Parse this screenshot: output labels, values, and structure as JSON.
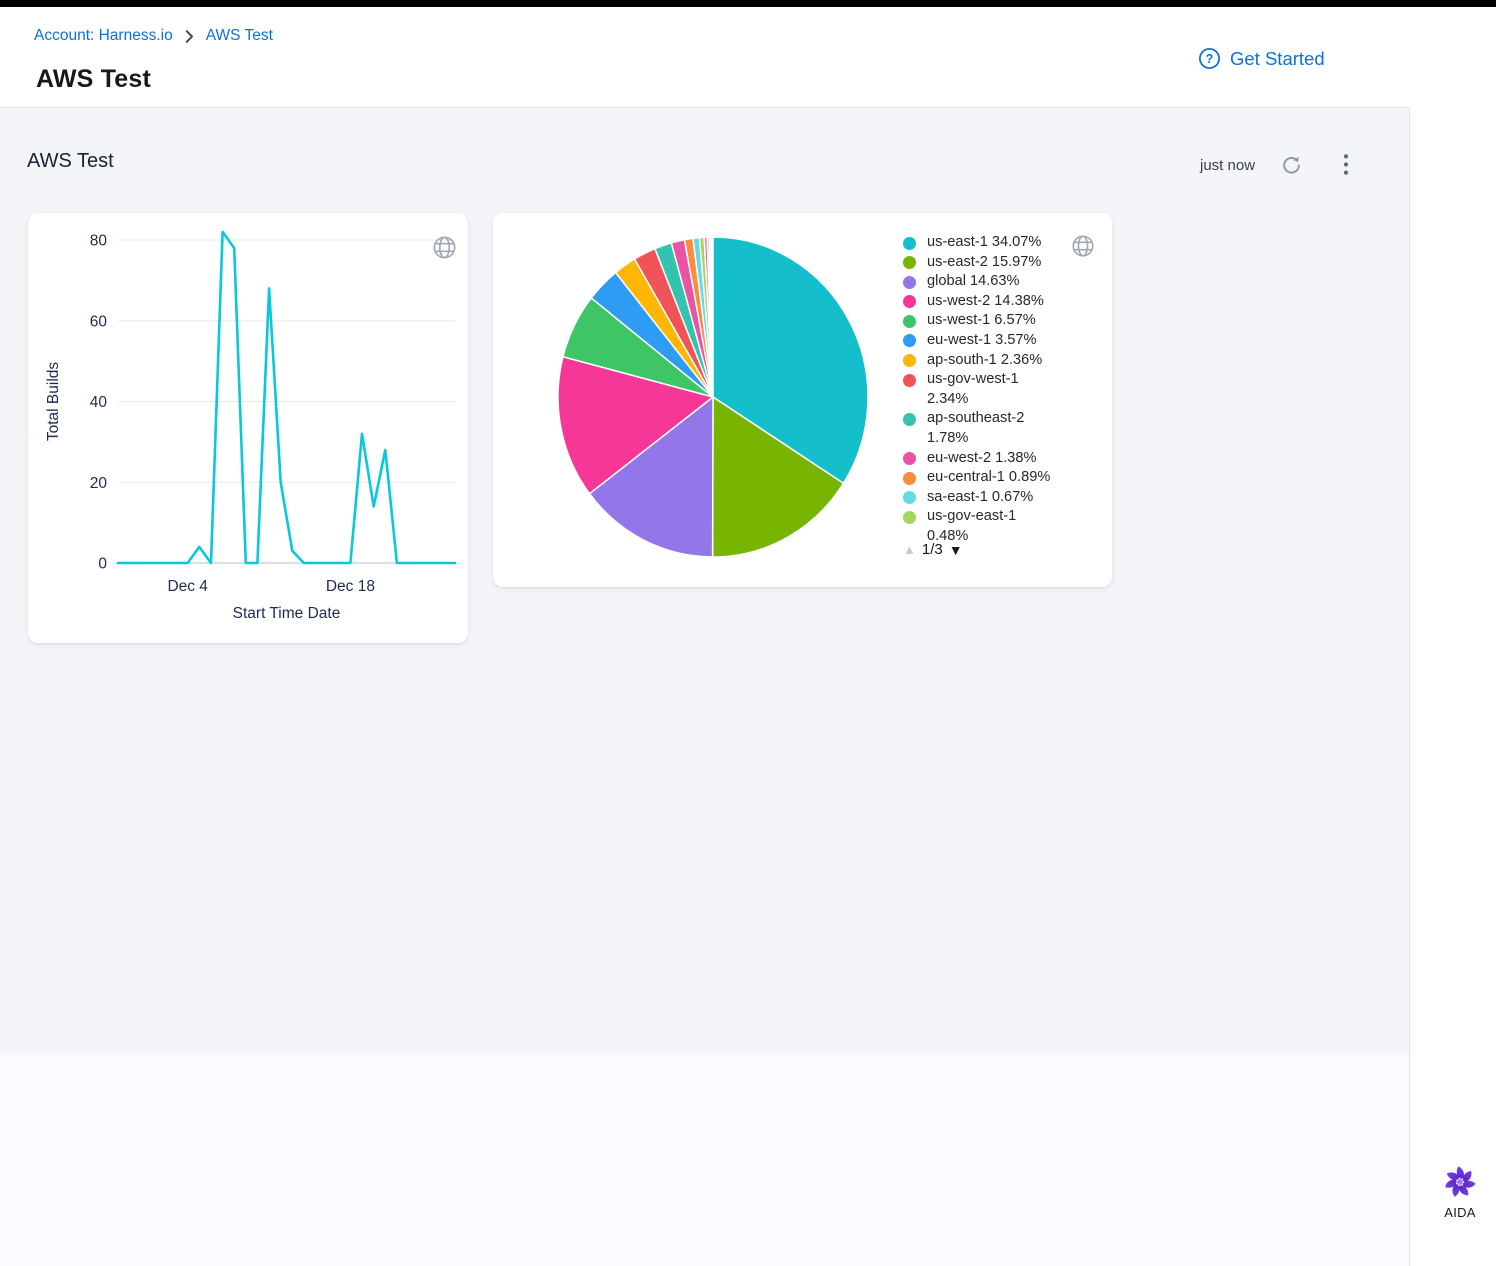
{
  "header": {
    "breadcrumb": [
      {
        "label": "Account: Harness.io"
      },
      {
        "label": "AWS Test"
      }
    ],
    "page_title": "AWS Test",
    "get_started_label": "Get Started"
  },
  "dashboard": {
    "section_title": "AWS Test",
    "last_refreshed": "just now"
  },
  "aida": {
    "label": "AIDA"
  },
  "chart_data": [
    {
      "type": "line",
      "title": "",
      "xlabel": "Start Time Date",
      "ylabel": "Total Builds",
      "values": [
        0,
        0,
        0,
        0,
        0,
        0,
        0,
        4,
        0,
        82,
        78,
        0,
        0,
        68,
        20,
        3,
        0,
        0,
        0,
        0,
        0,
        32,
        14,
        28,
        0,
        0,
        0,
        0,
        0,
        0
      ],
      "x_tick_indices": [
        6,
        20
      ],
      "x_tick_labels": [
        "Dec 4",
        "Dec 18"
      ],
      "y_ticks": [
        0,
        20,
        40,
        60,
        80
      ],
      "ylim": [
        0,
        80
      ],
      "grid": true,
      "line_color": "#0bc8d9",
      "axis_text_color": "#1d2b4e",
      "grid_color": "#e8e8e8",
      "baseline_color": "#ccd6eb"
    },
    {
      "type": "pie",
      "slices": [
        {
          "label": "us-east-1",
          "value": 34.07,
          "color": "#14becb"
        },
        {
          "label": "us-east-2",
          "value": 15.97,
          "color": "#78b502"
        },
        {
          "label": "global",
          "value": 14.63,
          "color": "#9376e8"
        },
        {
          "label": "us-west-2",
          "value": 14.38,
          "color": "#f53897"
        },
        {
          "label": "us-west-1",
          "value": 6.57,
          "color": "#3ec566"
        },
        {
          "label": "eu-west-1",
          "value": 3.57,
          "color": "#2d9cf2"
        },
        {
          "label": "ap-south-1",
          "value": 2.36,
          "color": "#ffb605"
        },
        {
          "label": "us-gov-west-1",
          "value": 2.34,
          "color": "#f05458",
          "two_line": true
        },
        {
          "label": "ap-southeast-2",
          "value": 1.78,
          "color": "#33c3ae",
          "two_line": true
        },
        {
          "label": "eu-west-2",
          "value": 1.38,
          "color": "#ea53a4"
        },
        {
          "label": "eu-central-1",
          "value": 0.89,
          "color": "#f98c3e"
        },
        {
          "label": "sa-east-1",
          "value": 0.67,
          "color": "#64dbe0"
        },
        {
          "label": "us-gov-east-1",
          "value": 0.48,
          "color": "#a6d45c",
          "two_line": true,
          "value_clipped": true
        }
      ],
      "tiny_unlabeled_slivers": [
        {
          "value": 0.3,
          "color": "#ec5fa1"
        },
        {
          "value": 0.2,
          "color": "#9f7fe5"
        },
        {
          "value": 0.15,
          "color": "#86d8f0"
        }
      ],
      "legend_position": "right",
      "legend_pagination": {
        "page": "1/3",
        "up_glyph": "▲",
        "down_glyph": "▼",
        "up_enabled": false,
        "down_enabled": true
      }
    }
  ]
}
